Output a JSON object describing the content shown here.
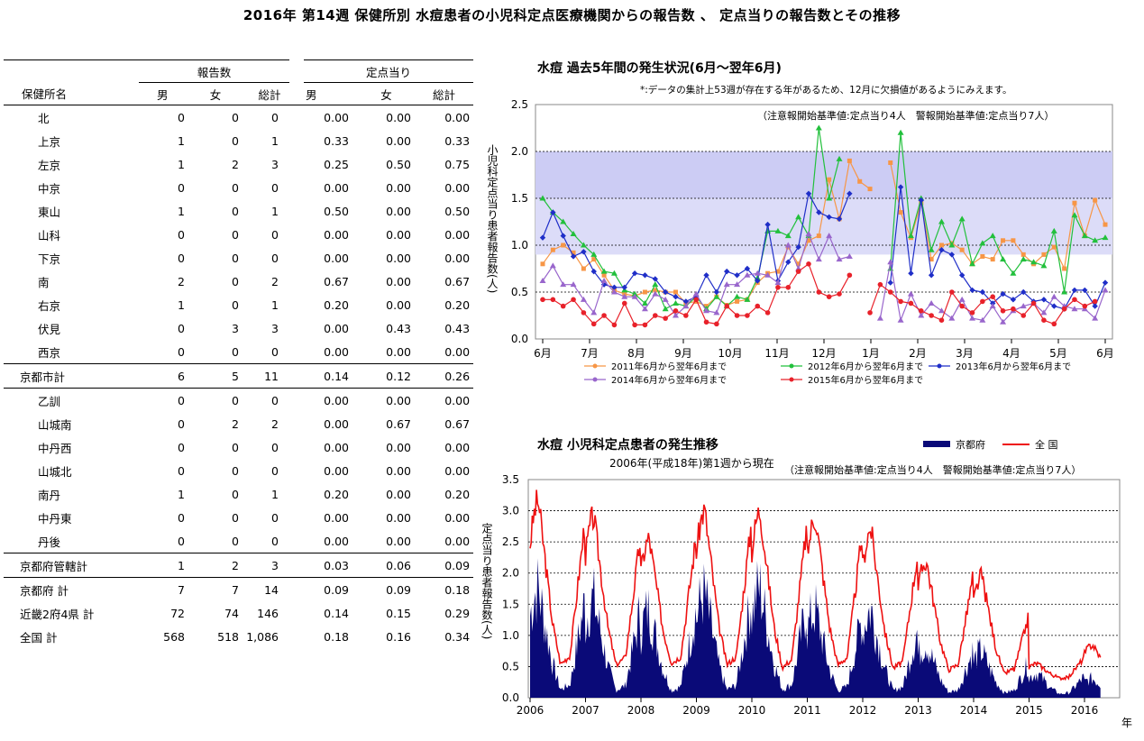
{
  "page_title": "2016年 第14週 保健所別 水痘患者の小児科定点医療機関からの報告数 、 定点当りの報告数とその推移",
  "table": {
    "group_headers": [
      "報告数",
      "定点当り"
    ],
    "col_headers": [
      "保健所名",
      "男",
      "女",
      "総計",
      "男",
      "女",
      "総計"
    ],
    "rows": [
      {
        "name": "北",
        "values": [
          "0",
          "0",
          "0",
          "0.00",
          "0.00",
          "0.00"
        ],
        "kind": "item"
      },
      {
        "name": "上京",
        "values": [
          "1",
          "0",
          "1",
          "0.33",
          "0.00",
          "0.33"
        ],
        "kind": "item"
      },
      {
        "name": "左京",
        "values": [
          "1",
          "2",
          "3",
          "0.25",
          "0.50",
          "0.75"
        ],
        "kind": "item"
      },
      {
        "name": "中京",
        "values": [
          "0",
          "0",
          "0",
          "0.00",
          "0.00",
          "0.00"
        ],
        "kind": "item"
      },
      {
        "name": "東山",
        "values": [
          "1",
          "0",
          "1",
          "0.50",
          "0.00",
          "0.50"
        ],
        "kind": "item"
      },
      {
        "name": "山科",
        "values": [
          "0",
          "0",
          "0",
          "0.00",
          "0.00",
          "0.00"
        ],
        "kind": "item"
      },
      {
        "name": "下京",
        "values": [
          "0",
          "0",
          "0",
          "0.00",
          "0.00",
          "0.00"
        ],
        "kind": "item"
      },
      {
        "name": "南",
        "values": [
          "2",
          "0",
          "2",
          "0.67",
          "0.00",
          "0.67"
        ],
        "kind": "item"
      },
      {
        "name": "右京",
        "values": [
          "1",
          "0",
          "1",
          "0.20",
          "0.00",
          "0.20"
        ],
        "kind": "item"
      },
      {
        "name": "伏見",
        "values": [
          "0",
          "3",
          "3",
          "0.00",
          "0.43",
          "0.43"
        ],
        "kind": "item"
      },
      {
        "name": "西京",
        "values": [
          "0",
          "0",
          "0",
          "0.00",
          "0.00",
          "0.00"
        ],
        "kind": "item"
      },
      {
        "name": "京都市計",
        "values": [
          "6",
          "5",
          "11",
          "0.14",
          "0.12",
          "0.26"
        ],
        "kind": "sum"
      },
      {
        "name": "乙訓",
        "values": [
          "0",
          "0",
          "0",
          "0.00",
          "0.00",
          "0.00"
        ],
        "kind": "item"
      },
      {
        "name": "山城南",
        "values": [
          "0",
          "2",
          "2",
          "0.00",
          "0.67",
          "0.67"
        ],
        "kind": "item"
      },
      {
        "name": "中丹西",
        "values": [
          "0",
          "0",
          "0",
          "0.00",
          "0.00",
          "0.00"
        ],
        "kind": "item"
      },
      {
        "name": "山城北",
        "values": [
          "0",
          "0",
          "0",
          "0.00",
          "0.00",
          "0.00"
        ],
        "kind": "item"
      },
      {
        "name": "南丹",
        "values": [
          "1",
          "0",
          "1",
          "0.20",
          "0.00",
          "0.20"
        ],
        "kind": "item"
      },
      {
        "name": "中丹東",
        "values": [
          "0",
          "0",
          "0",
          "0.00",
          "0.00",
          "0.00"
        ],
        "kind": "item"
      },
      {
        "name": "丹後",
        "values": [
          "0",
          "0",
          "0",
          "0.00",
          "0.00",
          "0.00"
        ],
        "kind": "item"
      },
      {
        "name": "京都府管轄計",
        "values": [
          "1",
          "2",
          "3",
          "0.03",
          "0.06",
          "0.09"
        ],
        "kind": "sum"
      },
      {
        "name": "京都府 計",
        "values": [
          "7",
          "7",
          "14",
          "0.09",
          "0.09",
          "0.18"
        ],
        "kind": "total"
      },
      {
        "name": "近畿2府4県 計",
        "values": [
          "72",
          "74",
          "146",
          "0.14",
          "0.15",
          "0.29"
        ],
        "kind": "total"
      },
      {
        "name": "全国 計",
        "values": [
          "568",
          "518",
          "1,086",
          "0.18",
          "0.16",
          "0.34"
        ],
        "kind": "total"
      }
    ]
  },
  "chart_data": [
    {
      "type": "line",
      "title": "水痘 過去5年間の発生状況(6月～翌年6月)",
      "note": "*:データの集計上53週が存在する年があるため、12月に欠損値があるようにみえます。",
      "threshold_note": "（注意報開始基準値:定点当り4人　警報開始基準値:定点当り7人）",
      "ylabel": "小児科定点当り患者報告数(人)",
      "ylim": [
        0,
        2.5
      ],
      "yticks": [
        "0.0",
        "0.5",
        "1.0",
        "1.5",
        "2.0",
        "2.5"
      ],
      "xticks": [
        "6月",
        "7月",
        "8月",
        "9月",
        "10月",
        "11月",
        "12月",
        "1月",
        "2月",
        "3月",
        "4月",
        "5月",
        "6月"
      ],
      "colors": {
        "2011": "#f79646",
        "2012": "#22c03c",
        "2013": "#1f2ec8",
        "2014": "#9966cc",
        "2015": "#e8212a"
      },
      "band_color": "#dcdcf8",
      "series": [
        {
          "name": "2011年6月から翌年6月まで",
          "key": "2011",
          "values": [
            0.8,
            0.95,
            1.0,
            0.92,
            0.75,
            0.85,
            0.68,
            0.52,
            0.48,
            0.46,
            0.5,
            0.52,
            0.5,
            0.5,
            0.38,
            0.4,
            0.35,
            0.45,
            0.36,
            0.4,
            0.42,
            0.6,
            0.7,
            0.72,
            0.98,
            0.8,
            1.05,
            1.1,
            1.7,
            1.28,
            1.9,
            1.68,
            1.6,
            null,
            1.88,
            1.35,
            1.08,
            1.45,
            0.85,
            1.0,
            1.02,
            0.95,
            0.8,
            0.88,
            0.85,
            1.05,
            1.05,
            0.9,
            0.8,
            0.9,
            0.98,
            0.75,
            1.45,
            1.1,
            1.48,
            1.22
          ]
        },
        {
          "name": "2012年6月から翌年6月まで",
          "key": "2012",
          "values": [
            1.5,
            1.35,
            1.25,
            1.12,
            1.0,
            0.9,
            0.72,
            0.7,
            0.52,
            0.48,
            0.38,
            0.58,
            0.32,
            0.38,
            0.35,
            0.45,
            0.32,
            0.45,
            0.35,
            0.45,
            0.42,
            0.65,
            1.15,
            1.15,
            1.1,
            1.3,
            1.1,
            2.25,
            1.5,
            1.92,
            null,
            null,
            null,
            null,
            0.75,
            2.2,
            1.1,
            1.5,
            0.95,
            1.25,
            1.0,
            1.28,
            0.8,
            1.02,
            1.1,
            0.85,
            0.7,
            0.85,
            0.82,
            0.78,
            1.15,
            0.5,
            1.32,
            1.1,
            1.05,
            1.08
          ]
        },
        {
          "name": "2013年6月から翌年6月まで",
          "key": "2013",
          "values": [
            1.08,
            1.35,
            1.1,
            0.88,
            0.93,
            0.72,
            0.58,
            0.55,
            0.55,
            0.7,
            0.68,
            0.64,
            0.5,
            0.45,
            0.4,
            0.45,
            0.68,
            0.5,
            0.72,
            0.68,
            0.75,
            0.62,
            1.22,
            0.62,
            0.82,
            0.98,
            1.55,
            1.35,
            1.3,
            1.28,
            1.55,
            null,
            null,
            null,
            0.6,
            1.62,
            0.7,
            1.48,
            0.68,
            0.95,
            0.9,
            0.68,
            0.52,
            0.5,
            0.38,
            0.48,
            0.42,
            0.5,
            0.4,
            0.42,
            0.35,
            0.32,
            0.52,
            0.52,
            0.35,
            0.6
          ]
        },
        {
          "name": "2014年6月から翌年6月まで",
          "key": "2014",
          "values": [
            0.62,
            0.78,
            0.58,
            0.58,
            0.42,
            0.28,
            0.62,
            0.5,
            0.45,
            0.45,
            0.32,
            0.48,
            0.42,
            0.25,
            0.35,
            0.48,
            0.3,
            0.28,
            0.58,
            0.58,
            0.68,
            0.7,
            0.68,
            0.6,
            1.0,
            0.75,
            1.12,
            0.85,
            1.1,
            0.85,
            0.88,
            null,
            null,
            0.22,
            0.82,
            0.2,
            0.48,
            0.25,
            0.38,
            0.3,
            0.22,
            0.42,
            0.22,
            0.2,
            0.35,
            0.18,
            0.3,
            0.35,
            0.38,
            0.28,
            0.45,
            0.35,
            0.32,
            0.32,
            0.22,
            0.52
          ]
        },
        {
          "name": "2015年6月から翌年6月まで",
          "key": "2015",
          "values": [
            0.42,
            0.42,
            0.35,
            0.42,
            0.28,
            0.16,
            0.25,
            0.15,
            0.38,
            0.15,
            0.15,
            0.25,
            0.22,
            0.3,
            0.25,
            0.42,
            0.18,
            0.16,
            0.35,
            0.25,
            0.25,
            0.35,
            0.28,
            0.55,
            0.55,
            0.72,
            0.8,
            0.5,
            0.45,
            0.48,
            0.68,
            null,
            0.28,
            0.58,
            0.5,
            0.4,
            0.38,
            0.3,
            0.25,
            0.2,
            0.5,
            0.35,
            0.28,
            0.4,
            0.45,
            0.3,
            0.32,
            0.25,
            0.38,
            0.2,
            0.16,
            0.32,
            0.42,
            0.35,
            0.4,
            null
          ]
        }
      ]
    },
    {
      "type": "area",
      "title": "水痘 小児科定点患者の発生推移",
      "subtitle": "2006年(平成18年)第1週から現在",
      "threshold_note": "（注意報開始基準値:定点当り4人　警報開始基準値:定点当り7人）",
      "ylabel": "定点当り患者報告数(人)",
      "xlabel": "年",
      "ylim": [
        0,
        3.5
      ],
      "yticks": [
        "0.0",
        "0.5",
        "1.0",
        "1.5",
        "2.0",
        "2.5",
        "3.0",
        "3.5"
      ],
      "xticks": [
        "2006",
        "2007",
        "2008",
        "2009",
        "2010",
        "2011",
        "2012",
        "2013",
        "2014",
        "2015",
        "2016"
      ],
      "legend": [
        {
          "label": "京都府",
          "color": "#0a0a78"
        },
        {
          "label": "全 国",
          "color": "#ee1111"
        }
      ],
      "yearly_profile_note": "weekly values per year, approximated by peak/trough pattern",
      "series": [
        {
          "name": "京都府",
          "kind": "area",
          "years": [
            {
              "year": 2006,
              "peak": 2.0,
              "trough": 0.05
            },
            {
              "year": 2007,
              "peak": 1.8,
              "trough": 0.05
            },
            {
              "year": 2008,
              "peak": 1.6,
              "trough": 0.05
            },
            {
              "year": 2009,
              "peak": 1.9,
              "trough": 0.05
            },
            {
              "year": 2010,
              "peak": 2.0,
              "trough": 0.05
            },
            {
              "year": 2011,
              "peak": 1.6,
              "trough": 0.05
            },
            {
              "year": 2012,
              "peak": 1.6,
              "trough": 0.05
            },
            {
              "year": 2013,
              "peak": 1.0,
              "trough": 0.05
            },
            {
              "year": 2014,
              "peak": 0.85,
              "trough": 0.05
            },
            {
              "year": 2015,
              "peak": 0.45,
              "trough": 0.05
            },
            {
              "year": 2016,
              "peak": 0.35,
              "trough": 0.05
            }
          ]
        },
        {
          "name": "全 国",
          "kind": "line",
          "years": [
            {
              "year": 2006,
              "peak": 3.15,
              "trough": 0.4
            },
            {
              "year": 2007,
              "peak": 2.9,
              "trough": 0.4
            },
            {
              "year": 2008,
              "peak": 2.55,
              "trough": 0.45
            },
            {
              "year": 2009,
              "peak": 3.0,
              "trough": 0.4
            },
            {
              "year": 2010,
              "peak": 3.0,
              "trough": 0.35
            },
            {
              "year": 2011,
              "peak": 2.9,
              "trough": 0.4
            },
            {
              "year": 2012,
              "peak": 2.7,
              "trough": 0.35
            },
            {
              "year": 2013,
              "peak": 2.2,
              "trough": 0.35
            },
            {
              "year": 2014,
              "peak": 1.95,
              "trough": 0.3
            },
            {
              "year": 2015,
              "peak": 0.55,
              "trough": 0.3
            },
            {
              "year": 2016,
              "peak": 0.85,
              "trough": 0.3
            }
          ]
        }
      ]
    }
  ]
}
